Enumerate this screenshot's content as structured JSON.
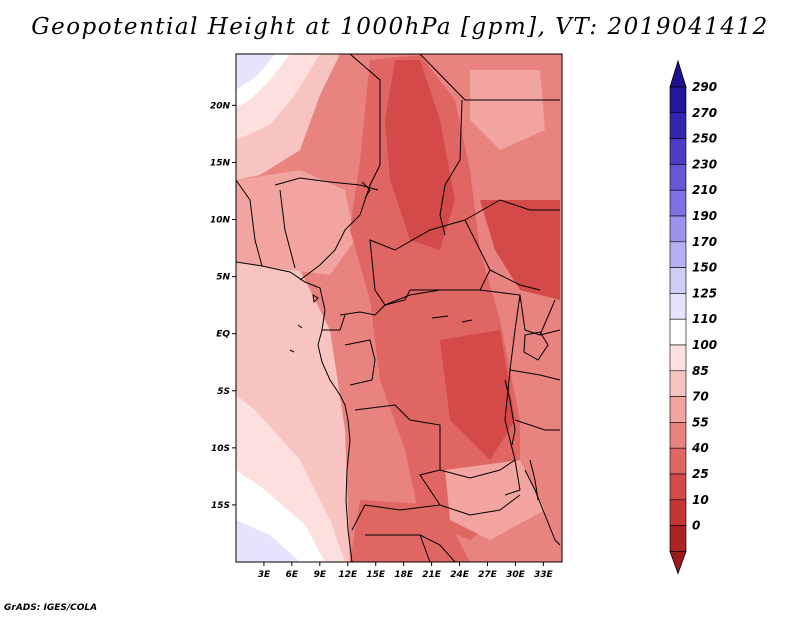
{
  "title": "Geopotential Height at 1000hPa [gpm], VT: 2019041412",
  "credit": "GrADS: IGES/COLA",
  "map": {
    "lon_range": [
      0,
      35
    ],
    "lat_range": [
      -20,
      24.5
    ],
    "lon_ticks": [
      {
        "value": 3,
        "label": "3E"
      },
      {
        "value": 6,
        "label": "6E"
      },
      {
        "value": 9,
        "label": "9E"
      },
      {
        "value": 12,
        "label": "12E"
      },
      {
        "value": 15,
        "label": "15E"
      },
      {
        "value": 18,
        "label": "18E"
      },
      {
        "value": 21,
        "label": "21E"
      },
      {
        "value": 24,
        "label": "24E"
      },
      {
        "value": 27,
        "label": "27E"
      },
      {
        "value": 30,
        "label": "30E"
      },
      {
        "value": 33,
        "label": "33E"
      }
    ],
    "lat_ticks": [
      {
        "value": 20,
        "label": "20N"
      },
      {
        "value": 15,
        "label": "15N"
      },
      {
        "value": 10,
        "label": "10N"
      },
      {
        "value": 5,
        "label": "5N"
      },
      {
        "value": 0,
        "label": "EQ"
      },
      {
        "value": -5,
        "label": "5S"
      },
      {
        "value": -10,
        "label": "10S"
      },
      {
        "value": -15,
        "label": "15S"
      }
    ]
  },
  "colorbar": {
    "levels": [
      {
        "label": "290",
        "color": "#23189a"
      },
      {
        "label": "270",
        "color": "#3326b0"
      },
      {
        "label": "250",
        "color": "#4a3cc4"
      },
      {
        "label": "230",
        "color": "#6458d6"
      },
      {
        "label": "210",
        "color": "#7d72e2"
      },
      {
        "label": "190",
        "color": "#9a92ec"
      },
      {
        "label": "170",
        "color": "#b6b0f4"
      },
      {
        "label": "150",
        "color": "#d0ccf8"
      },
      {
        "label": "125",
        "color": "#e6e4fc"
      },
      {
        "label": "110",
        "color": "#ffffff"
      },
      {
        "label": "100",
        "color": "#fde0de"
      },
      {
        "label": "85",
        "color": "#f8c4c1"
      },
      {
        "label": "70",
        "color": "#f1a4a0"
      },
      {
        "label": "55",
        "color": "#e98380"
      },
      {
        "label": "40",
        "color": "#e06664"
      },
      {
        "label": "25",
        "color": "#d44a48"
      },
      {
        "label": "10",
        "color": "#c43534"
      },
      {
        "label": "0",
        "color": "#ab2222"
      }
    ],
    "top_color": "#1c1190",
    "bottom_color": "#9b1a1a"
  }
}
